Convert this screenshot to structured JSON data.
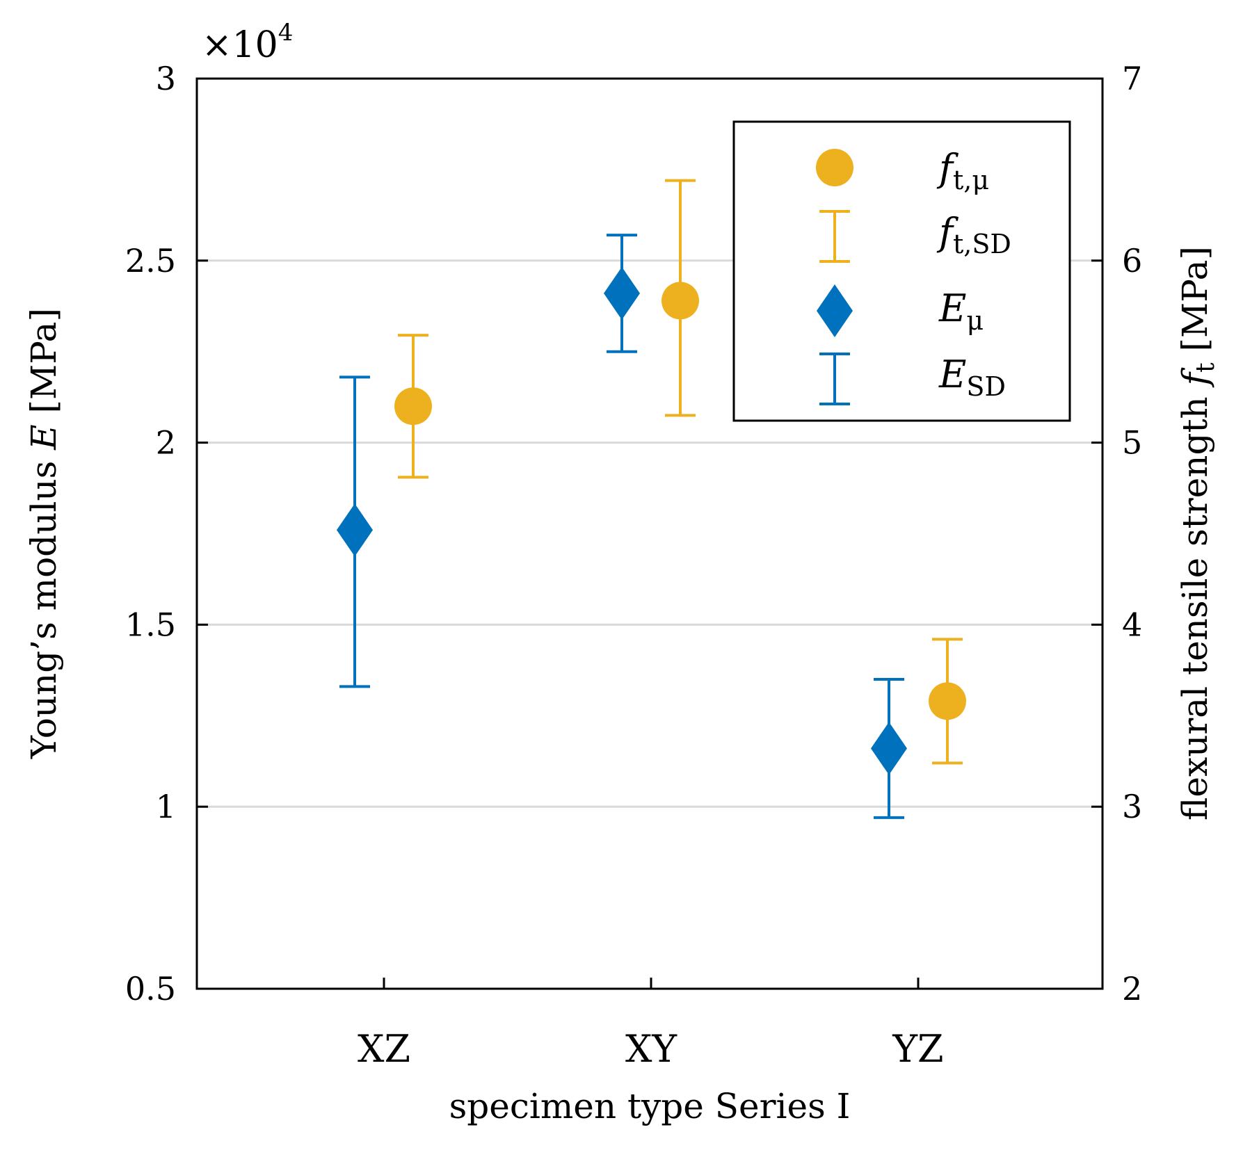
{
  "chart_data": {
    "type": "scatter",
    "xlabel": "specimen type Series I",
    "categories": [
      "XZ",
      "XY",
      "YZ"
    ],
    "left_axis": {
      "label_text": "Young’s modulus ",
      "label_var": "E",
      "label_unit": " [MPa]",
      "ylim": [
        5000,
        30000
      ],
      "ticks": [
        5000,
        10000,
        15000,
        20000,
        25000,
        30000
      ],
      "tick_labels": [
        "0.5",
        "1",
        "1.5",
        "2",
        "2.5",
        "3"
      ],
      "multiplier_prefix": "×10",
      "multiplier_exp": "4"
    },
    "right_axis": {
      "label_text": "flexural tensile strength ",
      "label_var": "f",
      "label_sub": "t",
      "label_unit": " [MPa]",
      "ylim": [
        2,
        7
      ],
      "ticks": [
        2,
        3,
        4,
        5,
        6,
        7
      ],
      "tick_labels": [
        "2",
        "3",
        "4",
        "5",
        "6",
        "7"
      ]
    },
    "grid": true,
    "legend_position": "top-right",
    "series": [
      {
        "name": "E",
        "axis": "left",
        "color": "#0072BD",
        "marker": "diamond",
        "values": [
          17600,
          24100,
          11600
        ],
        "sd_lower": [
          13300,
          22500,
          9700
        ],
        "sd_upper": [
          21800,
          25700,
          13500
        ]
      },
      {
        "name": "f_t",
        "axis": "right",
        "color": "#EDB120",
        "marker": "circle",
        "values": [
          5.2,
          5.78,
          3.58
        ],
        "sd_lower": [
          4.81,
          5.15,
          3.24
        ],
        "sd_upper": [
          5.59,
          6.44,
          3.92
        ]
      }
    ],
    "legend": [
      {
        "main": "f",
        "sub": "t,μ",
        "series": "f_t",
        "kind": "marker"
      },
      {
        "main": "f",
        "sub": "t,SD",
        "series": "f_t",
        "kind": "errorbar"
      },
      {
        "main": "E",
        "sub": "μ",
        "series": "E",
        "kind": "marker"
      },
      {
        "main": "E",
        "sub": "SD",
        "series": "E",
        "kind": "errorbar"
      }
    ]
  }
}
